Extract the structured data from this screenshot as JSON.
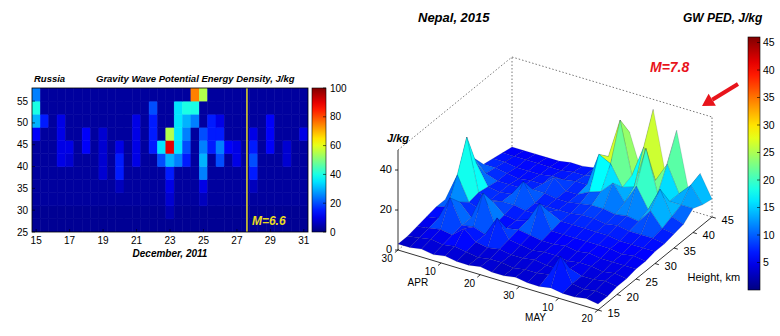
{
  "chart_data": [
    {
      "type": "heatmap",
      "title": "Russia",
      "subtitle": "Gravity Wave Potential Energy Density, J/kg",
      "xlabel": "December, 2011",
      "x": [
        15,
        15.5,
        16,
        16.5,
        17,
        17.5,
        18,
        18.5,
        19,
        19.5,
        20,
        20.5,
        21,
        21.5,
        22,
        22.5,
        23,
        23.5,
        24,
        24.5,
        25,
        25.5,
        26,
        26.5,
        27,
        27.5,
        28,
        28.5,
        29,
        29.5,
        30,
        30.5,
        31
      ],
      "y": [
        26.5,
        29.5,
        32.5,
        35.5,
        38.5,
        41.5,
        44.5,
        47.5,
        50.5,
        53.5,
        56.5
      ],
      "values": [
        [
          2,
          2,
          2,
          2,
          2,
          2,
          2,
          2,
          2,
          2,
          2,
          2,
          2,
          2,
          2,
          2,
          2,
          2,
          2,
          2,
          2,
          2,
          2,
          2,
          2,
          2,
          2,
          2,
          2,
          2,
          2,
          2,
          2
        ],
        [
          2,
          2,
          2,
          2,
          2,
          2,
          2,
          2,
          2,
          2,
          2,
          2,
          2,
          2,
          2,
          2,
          5,
          2,
          2,
          2,
          2,
          2,
          2,
          2,
          2,
          2,
          2,
          2,
          2,
          2,
          2,
          2,
          2
        ],
        [
          3,
          3,
          3,
          3,
          3,
          3,
          3,
          3,
          3,
          3,
          3,
          3,
          3,
          3,
          3,
          3,
          8,
          3,
          3,
          3,
          6,
          3,
          3,
          3,
          3,
          3,
          3,
          3,
          3,
          3,
          3,
          3,
          3
        ],
        [
          3,
          3,
          3,
          3,
          3,
          3,
          3,
          3,
          3,
          3,
          6,
          3,
          3,
          3,
          3,
          3,
          10,
          3,
          3,
          3,
          10,
          3,
          3,
          3,
          3,
          3,
          6,
          3,
          3,
          3,
          3,
          3,
          3
        ],
        [
          3,
          3,
          3,
          3,
          3,
          3,
          3,
          3,
          8,
          3,
          15,
          3,
          3,
          3,
          3,
          3,
          15,
          3,
          3,
          3,
          25,
          3,
          3,
          3,
          3,
          3,
          15,
          3,
          3,
          3,
          3,
          3,
          3
        ],
        [
          3,
          3,
          3,
          10,
          8,
          3,
          3,
          3,
          8,
          3,
          15,
          3,
          10,
          3,
          3,
          20,
          30,
          25,
          15,
          3,
          30,
          3,
          20,
          3,
          10,
          3,
          20,
          3,
          3,
          3,
          8,
          3,
          3
        ],
        [
          3,
          3,
          3,
          10,
          10,
          3,
          12,
          3,
          8,
          3,
          10,
          3,
          10,
          3,
          15,
          35,
          90,
          35,
          20,
          3,
          25,
          15,
          25,
          12,
          10,
          3,
          15,
          3,
          12,
          3,
          8,
          3,
          3
        ],
        [
          12,
          3,
          3,
          10,
          3,
          3,
          12,
          3,
          8,
          3,
          3,
          3,
          10,
          3,
          15,
          3,
          55,
          35,
          25,
          3,
          20,
          15,
          15,
          3,
          3,
          3,
          10,
          3,
          12,
          3,
          3,
          3,
          10
        ],
        [
          30,
          15,
          3,
          10,
          3,
          3,
          3,
          3,
          3,
          3,
          3,
          3,
          10,
          3,
          15,
          3,
          3,
          35,
          30,
          25,
          3,
          15,
          10,
          3,
          3,
          3,
          3,
          3,
          12,
          3,
          3,
          3,
          3
        ],
        [
          40,
          3,
          3,
          3,
          3,
          3,
          3,
          3,
          3,
          3,
          3,
          3,
          3,
          3,
          20,
          3,
          3,
          35,
          40,
          40,
          3,
          3,
          3,
          3,
          3,
          3,
          3,
          3,
          3,
          3,
          3,
          3,
          3
        ],
        [
          25,
          3,
          3,
          3,
          3,
          3,
          3,
          3,
          3,
          3,
          3,
          3,
          3,
          3,
          3,
          3,
          3,
          3,
          3,
          75,
          55,
          3,
          3,
          3,
          3,
          3,
          3,
          3,
          3,
          3,
          3,
          3,
          3
        ]
      ],
      "xlim": [
        14.75,
        31.25
      ],
      "xticks": [
        15,
        17,
        19,
        21,
        23,
        25,
        27,
        29,
        31
      ],
      "ylim": [
        25,
        58
      ],
      "yticks": [
        25,
        30,
        35,
        40,
        45,
        50,
        55
      ],
      "colorbar_lim": [
        0,
        100
      ],
      "colorbar_ticks": [
        0,
        20,
        40,
        60,
        80,
        100
      ],
      "annotations": [
        {
          "text": "M=6.6",
          "x": 27.6
        }
      ]
    },
    {
      "type": "surface",
      "title": "Nepal, 2015",
      "colorbar_title": "GW PED, J/kg",
      "ylabel": "Height, km",
      "zlabel": "J/kg",
      "x": [
        "2015-03-30",
        "2015-04-02",
        "2015-04-05",
        "2015-04-08",
        "2015-04-11",
        "2015-04-14",
        "2015-04-17",
        "2015-04-20",
        "2015-04-23",
        "2015-04-26",
        "2015-04-29",
        "2015-05-02",
        "2015-05-05",
        "2015-05-08",
        "2015-05-11",
        "2015-05-14",
        "2015-05-17",
        "2015-05-20"
      ],
      "y": [
        15,
        17.5,
        20,
        22.5,
        25,
        27.5,
        30,
        32.5,
        35,
        37.5,
        40,
        42.5,
        45
      ],
      "values": [
        [
          3,
          3,
          4,
          3,
          4,
          3,
          3,
          4,
          3,
          3,
          4,
          3,
          3,
          4,
          3,
          3,
          4,
          3
        ],
        [
          3,
          4,
          5,
          4,
          5,
          4,
          3,
          4,
          4,
          3,
          4,
          4,
          5,
          16,
          4,
          3,
          4,
          3
        ],
        [
          4,
          5,
          6,
          5,
          10,
          5,
          4,
          5,
          4,
          4,
          5,
          4,
          4,
          6,
          4,
          4,
          5,
          4
        ],
        [
          5,
          6,
          18,
          6,
          7,
          5,
          15,
          6,
          5,
          4,
          5,
          5,
          4,
          5,
          5,
          4,
          5,
          4
        ],
        [
          6,
          8,
          12,
          6,
          20,
          6,
          6,
          7,
          6,
          5,
          5,
          6,
          5,
          6,
          5,
          5,
          5,
          5
        ],
        [
          6,
          20,
          8,
          6,
          12,
          7,
          6,
          8,
          18,
          6,
          6,
          6,
          6,
          6,
          6,
          5,
          6,
          5
        ],
        [
          7,
          35,
          9,
          7,
          8,
          8,
          7,
          7,
          10,
          7,
          7,
          7,
          7,
          7,
          6,
          6,
          6,
          6
        ],
        [
          8,
          18,
          8,
          7,
          8,
          16,
          7,
          7,
          7,
          7,
          8,
          8,
          7,
          8,
          7,
          7,
          7,
          6
        ],
        [
          15,
          9,
          7,
          7,
          7,
          8,
          8,
          7,
          7,
          8,
          9,
          9,
          8,
          9,
          8,
          15,
          8,
          7
        ],
        [
          8,
          8,
          7,
          6,
          7,
          7,
          12,
          7,
          7,
          10,
          12,
          18,
          10,
          20,
          10,
          22,
          10,
          8
        ],
        [
          7,
          7,
          6,
          6,
          6,
          7,
          7,
          8,
          8,
          25,
          22,
          12,
          14,
          35,
          14,
          12,
          12,
          12
        ],
        [
          6,
          6,
          6,
          6,
          6,
          6,
          7,
          7,
          9,
          20,
          40,
          14,
          30,
          15,
          25,
          12,
          18,
          10
        ],
        [
          5,
          5,
          5,
          5,
          5,
          6,
          6,
          7,
          8,
          12,
          30,
          12,
          45,
          16,
          38,
          10,
          20,
          9
        ]
      ],
      "xlim": [
        "2015-03-30",
        "2015-05-20"
      ],
      "xticks": [
        {
          "value": "2015-03-30",
          "label": "30"
        },
        {
          "value": "2015-04-10",
          "label": "10"
        },
        {
          "value": "2015-04-20",
          "label": "20"
        },
        {
          "value": "2015-04-30",
          "label": "30"
        },
        {
          "value": "2015-05-10",
          "label": "10"
        },
        {
          "value": "2015-05-20",
          "label": "20"
        }
      ],
      "month_labels": [
        {
          "value": "2015-04-10",
          "label": "APR"
        },
        {
          "value": "2015-05-10",
          "label": "MAY"
        }
      ],
      "ylim": [
        15,
        45
      ],
      "yticks": [
        15,
        20,
        25,
        30,
        35,
        40,
        45
      ],
      "zlim": [
        0,
        50
      ],
      "zticks": [
        0,
        20,
        40
      ],
      "colorbar_lim": [
        0,
        46
      ],
      "colorbar_ticks": [
        5,
        10,
        15,
        20,
        25,
        30,
        35,
        40,
        45
      ],
      "annotations": [
        {
          "text": "M=7.8"
        }
      ]
    }
  ]
}
